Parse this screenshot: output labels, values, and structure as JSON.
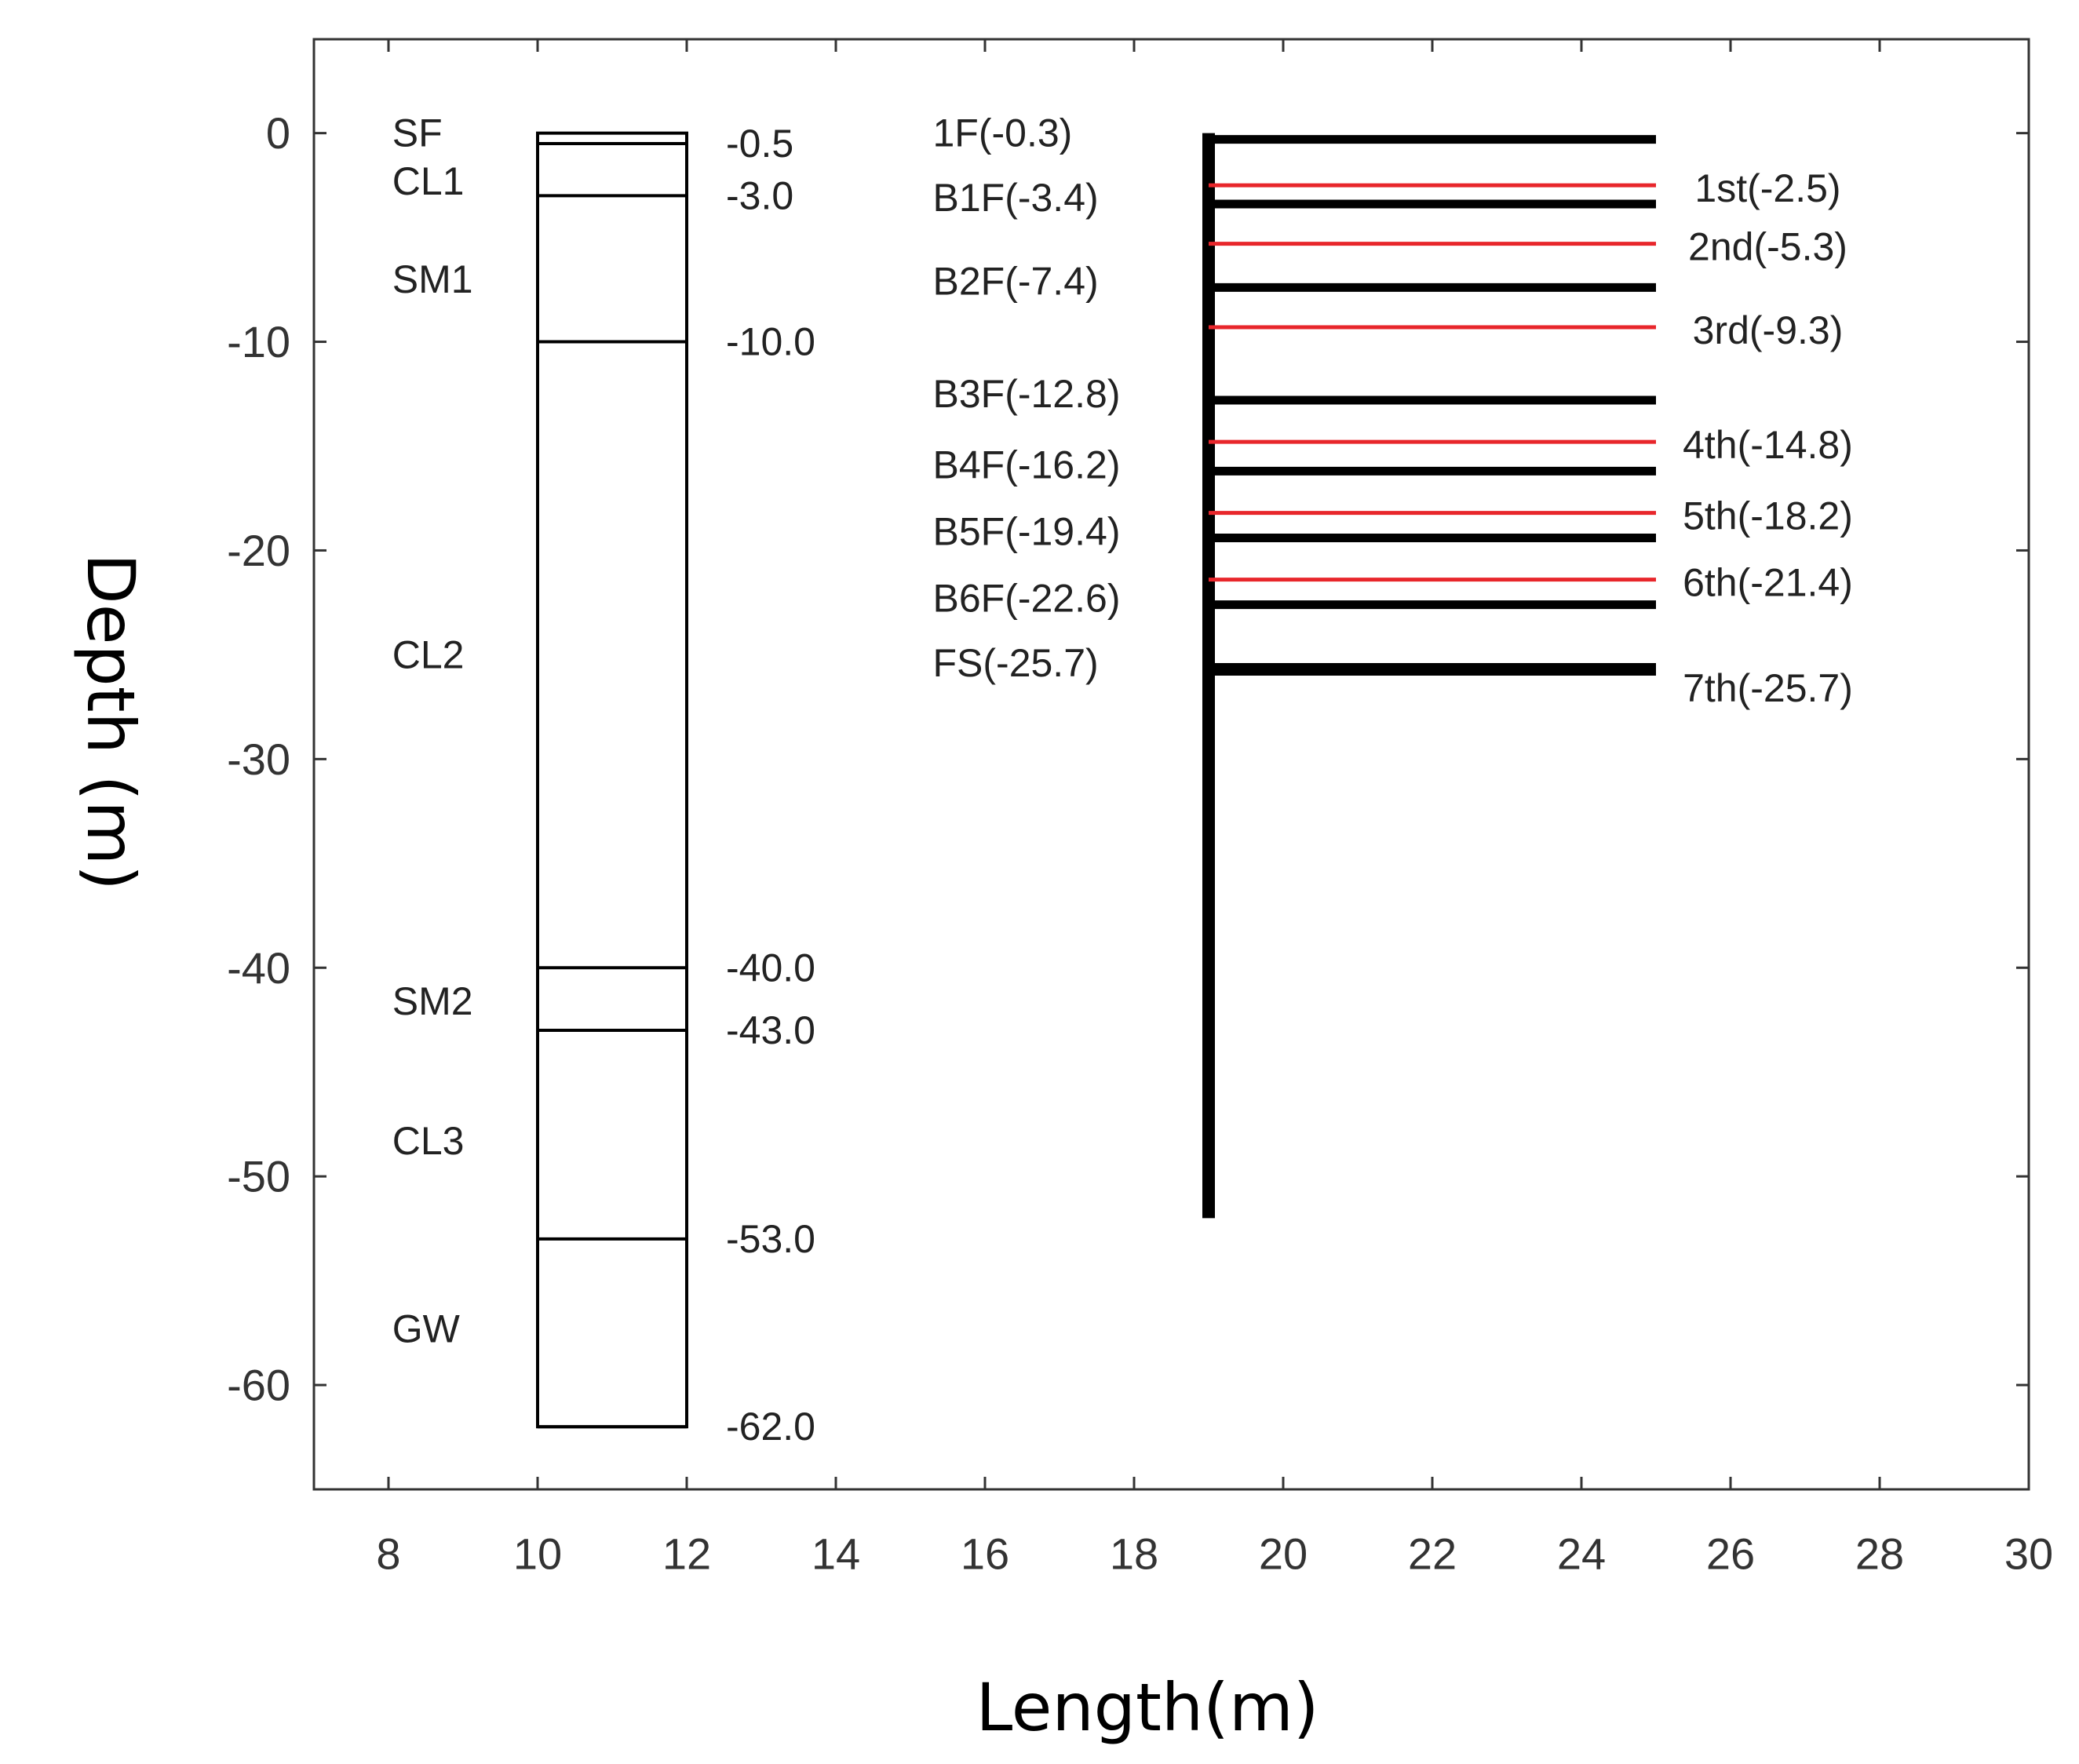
{
  "chart_data": {
    "type": "diagram",
    "xlabel": "Length(m)",
    "ylabel": "Depth (m)",
    "xlim": [
      7,
      30
    ],
    "ylim": [
      -65,
      4.5
    ],
    "x_ticks": [
      "8",
      "10",
      "12",
      "14",
      "16",
      "18",
      "20",
      "22",
      "24",
      "26",
      "28",
      "30"
    ],
    "x_tick_values": [
      8,
      10,
      12,
      14,
      16,
      18,
      20,
      22,
      24,
      26,
      28,
      30
    ],
    "y_ticks": [
      "0",
      "-10",
      "-20",
      "-30",
      "-40",
      "-50",
      "-60"
    ],
    "y_tick_values": [
      0,
      -10,
      -20,
      -30,
      -40,
      -50,
      -60
    ],
    "soil_column": {
      "x_range": [
        10,
        12
      ],
      "top": 0,
      "bottom": -62,
      "boundaries": [
        {
          "depth": -0.5,
          "label": "-0.5"
        },
        {
          "depth": -3.0,
          "label": "-3.0"
        },
        {
          "depth": -10.0,
          "label": "-10.0"
        },
        {
          "depth": -40.0,
          "label": "-40.0"
        },
        {
          "depth": -43.0,
          "label": "-43.0"
        },
        {
          "depth": -53.0,
          "label": "-53.0"
        },
        {
          "depth": -62.0,
          "label": "-62.0"
        }
      ],
      "layers": [
        {
          "name": "SF",
          "label_depth": 0
        },
        {
          "name": "CL1",
          "label_depth": -2.3
        },
        {
          "name": "SM1",
          "label_depth": -7
        },
        {
          "name": "CL2",
          "label_depth": -25
        },
        {
          "name": "SM2",
          "label_depth": -41.6
        },
        {
          "name": "CL3",
          "label_depth": -48.3
        },
        {
          "name": "GW",
          "label_depth": -57.3
        }
      ]
    },
    "wall": {
      "x": 19,
      "top": 0,
      "bottom": -52
    },
    "floors": [
      {
        "label": "1F(-0.3)",
        "depth": -0.3,
        "x_end": 25
      },
      {
        "label": "B1F(-3.4)",
        "depth": -3.4,
        "x_end": 25
      },
      {
        "label": "B2F(-7.4)",
        "depth": -7.4,
        "x_end": 25
      },
      {
        "label": "B3F(-12.8)",
        "depth": -12.8,
        "x_end": 25
      },
      {
        "label": "B4F(-16.2)",
        "depth": -16.2,
        "x_end": 25
      },
      {
        "label": "B5F(-19.4)",
        "depth": -19.4,
        "x_end": 25
      },
      {
        "label": "B6F(-22.6)",
        "depth": -22.6,
        "x_end": 25
      },
      {
        "label": "FS(-25.7)",
        "depth": -25.7,
        "x_end": 25
      }
    ],
    "excavation_stages": [
      {
        "label": "1st(-2.5)",
        "depth": -2.5
      },
      {
        "label": "2nd(-5.3)",
        "depth": -5.3
      },
      {
        "label": "3rd(-9.3)",
        "depth": -9.3
      },
      {
        "label": "4th(-14.8)",
        "depth": -14.8
      },
      {
        "label": "5th(-18.2)",
        "depth": -18.2
      },
      {
        "label": "6th(-21.4)",
        "depth": -21.4
      },
      {
        "label": "7th(-25.7)",
        "depth": -25.7
      }
    ],
    "colors": {
      "floor": "#000000",
      "stage": "#e8262b",
      "frame": "#333333"
    }
  }
}
